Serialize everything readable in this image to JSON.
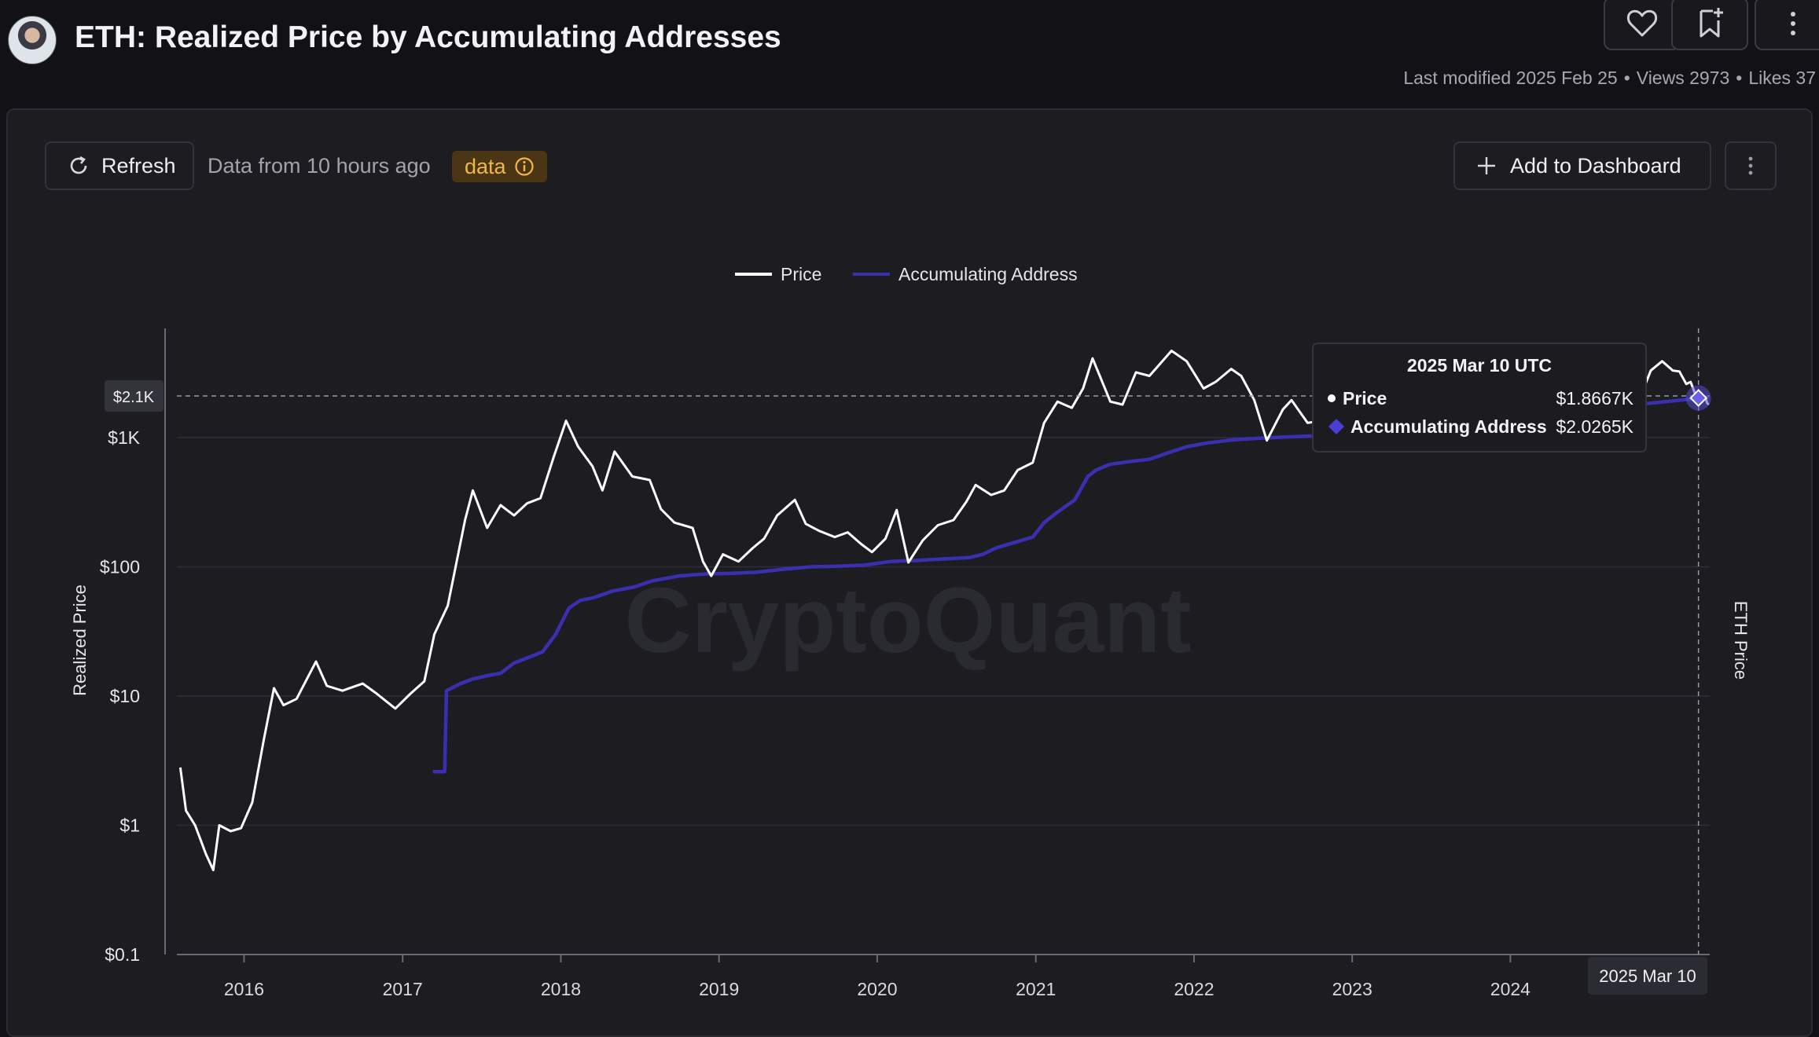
{
  "header": {
    "title": "ETH: Realized Price by Accumulating Addresses",
    "last_modified": "Last modified 2025 Feb 25",
    "views": "Views 2973",
    "likes": "Likes 37"
  },
  "toolbar": {
    "refresh_label": "Refresh",
    "data_age": "Data from 10 hours ago",
    "badge_label": "data",
    "add_dashboard_label": "Add to Dashboard"
  },
  "icons": {
    "like": "heart-icon",
    "bookmark": "bookmark-add-icon",
    "more": "more-vertical-icon",
    "refresh": "refresh-icon",
    "info": "info-icon",
    "add": "plus-icon"
  },
  "colors": {
    "price": "#ffffff",
    "accumulating": "#3b2fb0",
    "badge_text": "#f2b646",
    "watermark": "#2a2a31"
  },
  "watermark": "CryptoQuant",
  "chart_data": {
    "type": "line",
    "title": "",
    "ylabel": "Realized Price",
    "y2label": "ETH Price",
    "yscale": "log",
    "ylim": [
      0.1,
      7000
    ],
    "xlim": [
      "2015-07-30",
      "2025-04-05"
    ],
    "y_ticks": [
      0.1,
      1,
      10,
      100,
      1000
    ],
    "y_tick_labels": [
      "$0.1",
      "$1",
      "$10",
      "$100",
      "$1K"
    ],
    "x_ticks": [
      "2016",
      "2017",
      "2018",
      "2019",
      "2020",
      "2021",
      "2022",
      "2023",
      "2024"
    ],
    "grid": true,
    "legend": "top-center",
    "crosshair": {
      "date": "2025 Mar 10",
      "y_label": "$2.1K",
      "y_value": 2100
    },
    "tooltip": {
      "title": "2025 Mar 10 UTC",
      "rows": [
        {
          "name": "Price",
          "value": "$1.8667K"
        },
        {
          "name": "Accumulating Address",
          "value": "$2.0265K"
        }
      ]
    },
    "series": [
      {
        "name": "Price",
        "color": "#ffffff",
        "points": [
          [
            "2015-08-07",
            2.8
          ],
          [
            "2015-08-20",
            1.3
          ],
          [
            "2015-09-10",
            1.0
          ],
          [
            "2015-10-05",
            0.6
          ],
          [
            "2015-10-22",
            0.45
          ],
          [
            "2015-11-05",
            1.0
          ],
          [
            "2015-12-01",
            0.9
          ],
          [
            "2015-12-25",
            0.95
          ],
          [
            "2016-01-20",
            1.5
          ],
          [
            "2016-02-15",
            4.5
          ],
          [
            "2016-03-10",
            11.5
          ],
          [
            "2016-04-01",
            8.5
          ],
          [
            "2016-05-01",
            9.5
          ],
          [
            "2016-06-15",
            18.5
          ],
          [
            "2016-07-10",
            12
          ],
          [
            "2016-08-15",
            11
          ],
          [
            "2016-10-01",
            12.5
          ],
          [
            "2016-11-01",
            10.5
          ],
          [
            "2016-12-15",
            8
          ],
          [
            "2017-01-20",
            10.5
          ],
          [
            "2017-02-20",
            13
          ],
          [
            "2017-03-15",
            30
          ],
          [
            "2017-04-15",
            50
          ],
          [
            "2017-05-25",
            230
          ],
          [
            "2017-06-12",
            390
          ],
          [
            "2017-07-15",
            200
          ],
          [
            "2017-08-15",
            300
          ],
          [
            "2017-09-15",
            250
          ],
          [
            "2017-10-15",
            310
          ],
          [
            "2017-11-15",
            340
          ],
          [
            "2017-12-15",
            700
          ],
          [
            "2018-01-13",
            1350
          ],
          [
            "2018-02-10",
            850
          ],
          [
            "2018-03-15",
            600
          ],
          [
            "2018-04-07",
            390
          ],
          [
            "2018-05-05",
            780
          ],
          [
            "2018-06-15",
            500
          ],
          [
            "2018-07-25",
            470
          ],
          [
            "2018-08-20",
            280
          ],
          [
            "2018-09-20",
            220
          ],
          [
            "2018-11-01",
            200
          ],
          [
            "2018-11-25",
            110
          ],
          [
            "2018-12-14",
            85
          ],
          [
            "2019-01-10",
            125
          ],
          [
            "2019-02-15",
            110
          ],
          [
            "2019-03-20",
            140
          ],
          [
            "2019-04-15",
            165
          ],
          [
            "2019-05-15",
            250
          ],
          [
            "2019-06-25",
            330
          ],
          [
            "2019-07-20",
            215
          ],
          [
            "2019-08-20",
            190
          ],
          [
            "2019-09-25",
            170
          ],
          [
            "2019-10-25",
            185
          ],
          [
            "2019-11-25",
            150
          ],
          [
            "2019-12-20",
            130
          ],
          [
            "2020-01-20",
            165
          ],
          [
            "2020-02-15",
            275
          ],
          [
            "2020-03-13",
            108
          ],
          [
            "2020-04-15",
            160
          ],
          [
            "2020-05-20",
            210
          ],
          [
            "2020-06-25",
            230
          ],
          [
            "2020-07-25",
            320
          ],
          [
            "2020-08-15",
            430
          ],
          [
            "2020-09-20",
            360
          ],
          [
            "2020-10-20",
            390
          ],
          [
            "2020-11-20",
            560
          ],
          [
            "2020-12-25",
            640
          ],
          [
            "2021-01-20",
            1300
          ],
          [
            "2021-02-20",
            1900
          ],
          [
            "2021-03-25",
            1700
          ],
          [
            "2021-04-20",
            2400
          ],
          [
            "2021-05-12",
            4100
          ],
          [
            "2021-06-22",
            1900
          ],
          [
            "2021-07-20",
            1800
          ],
          [
            "2021-08-20",
            3200
          ],
          [
            "2021-09-20",
            3000
          ],
          [
            "2021-10-20",
            3900
          ],
          [
            "2021-11-10",
            4700
          ],
          [
            "2021-12-15",
            3900
          ],
          [
            "2022-01-23",
            2400
          ],
          [
            "2022-02-20",
            2700
          ],
          [
            "2022-03-28",
            3400
          ],
          [
            "2022-04-20",
            3000
          ],
          [
            "2022-05-20",
            1950
          ],
          [
            "2022-06-18",
            950
          ],
          [
            "2022-07-25",
            1650
          ],
          [
            "2022-08-14",
            1950
          ],
          [
            "2022-09-20",
            1300
          ],
          [
            "2022-10-20",
            1350
          ],
          [
            "2022-11-10",
            1200
          ],
          [
            "2022-11-30",
            1250
          ],
          [
            "2024-10-01",
            1250
          ],
          [
            "2024-11-20",
            3300
          ],
          [
            "2024-12-16",
            3900
          ],
          [
            "2025-01-10",
            3300
          ],
          [
            "2025-01-25",
            3250
          ],
          [
            "2025-02-10",
            2600
          ],
          [
            "2025-02-20",
            2700
          ],
          [
            "2025-03-03",
            2150
          ],
          [
            "2025-03-10",
            1867
          ],
          [
            "2025-03-15",
            1900
          ],
          [
            "2025-03-20",
            1950
          ],
          [
            "2025-03-26",
            2050
          ],
          [
            "2025-03-30",
            1850
          ],
          [
            "2025-04-03",
            1800
          ]
        ]
      },
      {
        "name": "Accumulating Address",
        "color": "#3b2fb0",
        "points": [
          [
            "2017-03-12",
            2.6
          ],
          [
            "2017-04-08",
            2.6
          ],
          [
            "2017-04-12",
            11
          ],
          [
            "2017-05-15",
            12.5
          ],
          [
            "2017-06-10",
            13.5
          ],
          [
            "2017-07-20",
            14.5
          ],
          [
            "2017-08-15",
            15
          ],
          [
            "2017-09-15",
            18
          ],
          [
            "2017-10-20",
            20
          ],
          [
            "2017-11-20",
            22
          ],
          [
            "2017-12-20",
            30
          ],
          [
            "2018-01-20",
            48
          ],
          [
            "2018-02-15",
            55
          ],
          [
            "2018-03-20",
            58
          ],
          [
            "2018-05-01",
            65
          ],
          [
            "2018-06-20",
            70
          ],
          [
            "2018-08-01",
            78
          ],
          [
            "2018-10-01",
            85
          ],
          [
            "2018-12-01",
            88
          ],
          [
            "2019-02-01",
            89
          ],
          [
            "2019-04-01",
            91
          ],
          [
            "2019-06-01",
            96
          ],
          [
            "2019-08-01",
            100
          ],
          [
            "2019-10-01",
            101
          ],
          [
            "2019-12-01",
            103
          ],
          [
            "2020-02-01",
            110
          ],
          [
            "2020-04-01",
            112
          ],
          [
            "2020-06-01",
            115
          ],
          [
            "2020-08-01",
            118
          ],
          [
            "2020-09-01",
            125
          ],
          [
            "2020-10-01",
            140
          ],
          [
            "2020-11-15",
            155
          ],
          [
            "2020-12-25",
            170
          ],
          [
            "2021-01-20",
            220
          ],
          [
            "2021-02-20",
            265
          ],
          [
            "2021-04-01",
            330
          ],
          [
            "2021-05-01",
            500
          ],
          [
            "2021-05-20",
            560
          ],
          [
            "2021-06-20",
            620
          ],
          [
            "2021-08-01",
            650
          ],
          [
            "2021-09-20",
            680
          ],
          [
            "2021-11-01",
            760
          ],
          [
            "2021-12-15",
            850
          ],
          [
            "2022-02-01",
            910
          ],
          [
            "2022-04-01",
            960
          ],
          [
            "2022-06-01",
            990
          ],
          [
            "2022-08-01",
            1010
          ],
          [
            "2022-10-01",
            1030
          ],
          [
            "2022-11-25",
            1040
          ],
          [
            "2025-03-01",
            2000
          ],
          [
            "2025-03-10",
            2026
          ],
          [
            "2025-04-03",
            2050
          ]
        ]
      }
    ]
  }
}
